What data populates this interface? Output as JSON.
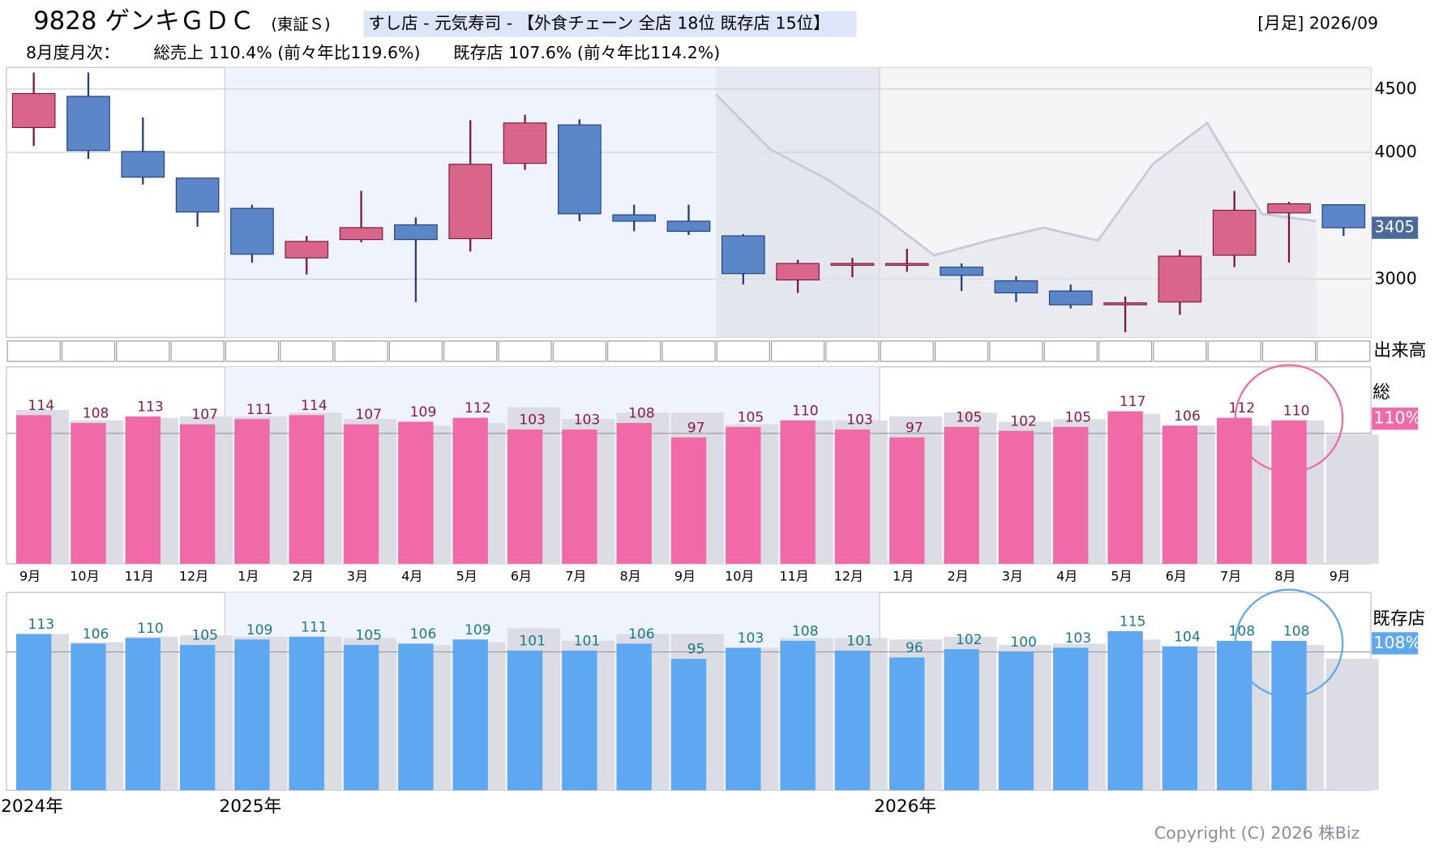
{
  "header": {
    "code_name": "9828 ゲンキＧＤＣ",
    "market": "(東証Ｓ)",
    "industry": "すし店 - 元気寿司 - 【外食チェーン 全店 18位 既存店 15位】",
    "period": "[月足] 2026/09",
    "monthly_label": "8月度月次：",
    "total_sales": "総売上 110.4% (前々年比119.6%)",
    "existing_sales": "既存店 107.6% (前々年比114.2%)"
  },
  "chart_data": [
    {
      "type": "candlestick",
      "open": [
        4196,
        4442,
        4007,
        3797,
        3558,
        3167,
        3312,
        3428,
        3319,
        3913,
        4217,
        3507,
        3457,
        3341,
        2993,
        3109,
        3116,
        3094,
        2986,
        2906,
        2797,
        2819,
        3188,
        3522,
        3587
      ],
      "high": [
        4630,
        4630,
        4275,
        3797,
        3587,
        3341,
        3696,
        3486,
        4254,
        4297,
        4261,
        3587,
        3587,
        3355,
        3152,
        3167,
        3239,
        3123,
        3022,
        2957,
        2862,
        3232,
        3696,
        3609,
        3587
      ],
      "low": [
        4051,
        3949,
        3746,
        3413,
        3130,
        3036,
        3290,
        2819,
        3217,
        3862,
        3457,
        3377,
        3348,
        2957,
        2891,
        3015,
        3058,
        2906,
        2819,
        2768,
        2580,
        2717,
        3094,
        3130,
        3341
      ],
      "close": [
        4464,
        4014,
        3804,
        3529,
        3196,
        3297,
        3406,
        3312,
        3906,
        4232,
        3515,
        3457,
        3377,
        3043,
        3123,
        3123,
        3123,
        3029,
        2891,
        2797,
        2812,
        3181,
        3543,
        3594,
        3405
      ],
      "comparison": [
        null,
        null,
        null,
        null,
        null,
        null,
        null,
        null,
        null,
        null,
        null,
        null,
        null,
        4457,
        4022,
        3797,
        3515,
        3188,
        3304,
        3406,
        3304,
        3906,
        4232,
        3515,
        3457
      ],
      "up_color": "#d9668a",
      "down_color": "#5b86c8",
      "ylim": [
        2540,
        4670
      ],
      "yticks": [
        3000,
        4000,
        4500
      ],
      "last_price": 3405,
      "volume_label": "出来高"
    },
    {
      "type": "bar",
      "panel_label": "総",
      "current_label": "110%",
      "categories": [
        "9月",
        "10月",
        "11月",
        "12月",
        "1月",
        "2月",
        "3月",
        "4月",
        "5月",
        "6月",
        "7月",
        "8月",
        "9月",
        "10月",
        "11月",
        "12月",
        "1月",
        "2月",
        "3月",
        "4月",
        "5月",
        "6月",
        "7月",
        "8月",
        "9月"
      ],
      "series": [
        {
          "color": "#dcdce4",
          "values": [
            118,
            110,
            112,
            113,
            113,
            116,
            111,
            106,
            108,
            120,
            111,
            116,
            116,
            107,
            110,
            110,
            113,
            116,
            109,
            111,
            115,
            106,
            106,
            110,
            99
          ]
        },
        {
          "color": "#f06aa8",
          "label_color": "#8b1a4a",
          "values": [
            114,
            108,
            113,
            107,
            111,
            114,
            107,
            109,
            112,
            103,
            103,
            108,
            97,
            105,
            110,
            103,
            97,
            105,
            102,
            105,
            117,
            106,
            112,
            110,
            null
          ]
        }
      ],
      "ylim": [
        0,
        151
      ],
      "reference_line": 100
    },
    {
      "type": "bar",
      "panel_label": "既存店",
      "current_label": "108%",
      "categories": [
        "2024年",
        null,
        null,
        null,
        "2025年",
        null,
        null,
        null,
        null,
        null,
        null,
        null,
        null,
        null,
        null,
        null,
        "2026年",
        null,
        null,
        null,
        null,
        null,
        null,
        null,
        null
      ],
      "series": [
        {
          "color": "#dcdce4",
          "values": [
            113,
            107,
            111,
            112,
            111,
            111,
            110,
            105,
            107,
            117,
            108,
            113,
            113,
            103,
            110,
            110,
            109,
            111,
            105,
            106,
            109,
            104,
            101,
            105,
            95
          ]
        },
        {
          "color": "#5ea8f2",
          "label_color": "#1a7a8a",
          "values": [
            113,
            106,
            110,
            105,
            109,
            111,
            105,
            106,
            109,
            101,
            101,
            106,
            95,
            103,
            108,
            101,
            96,
            102,
            100,
            103,
            115,
            104,
            108,
            108,
            null
          ]
        }
      ],
      "ylim": [
        0,
        143
      ],
      "reference_line": 100
    }
  ]
}
